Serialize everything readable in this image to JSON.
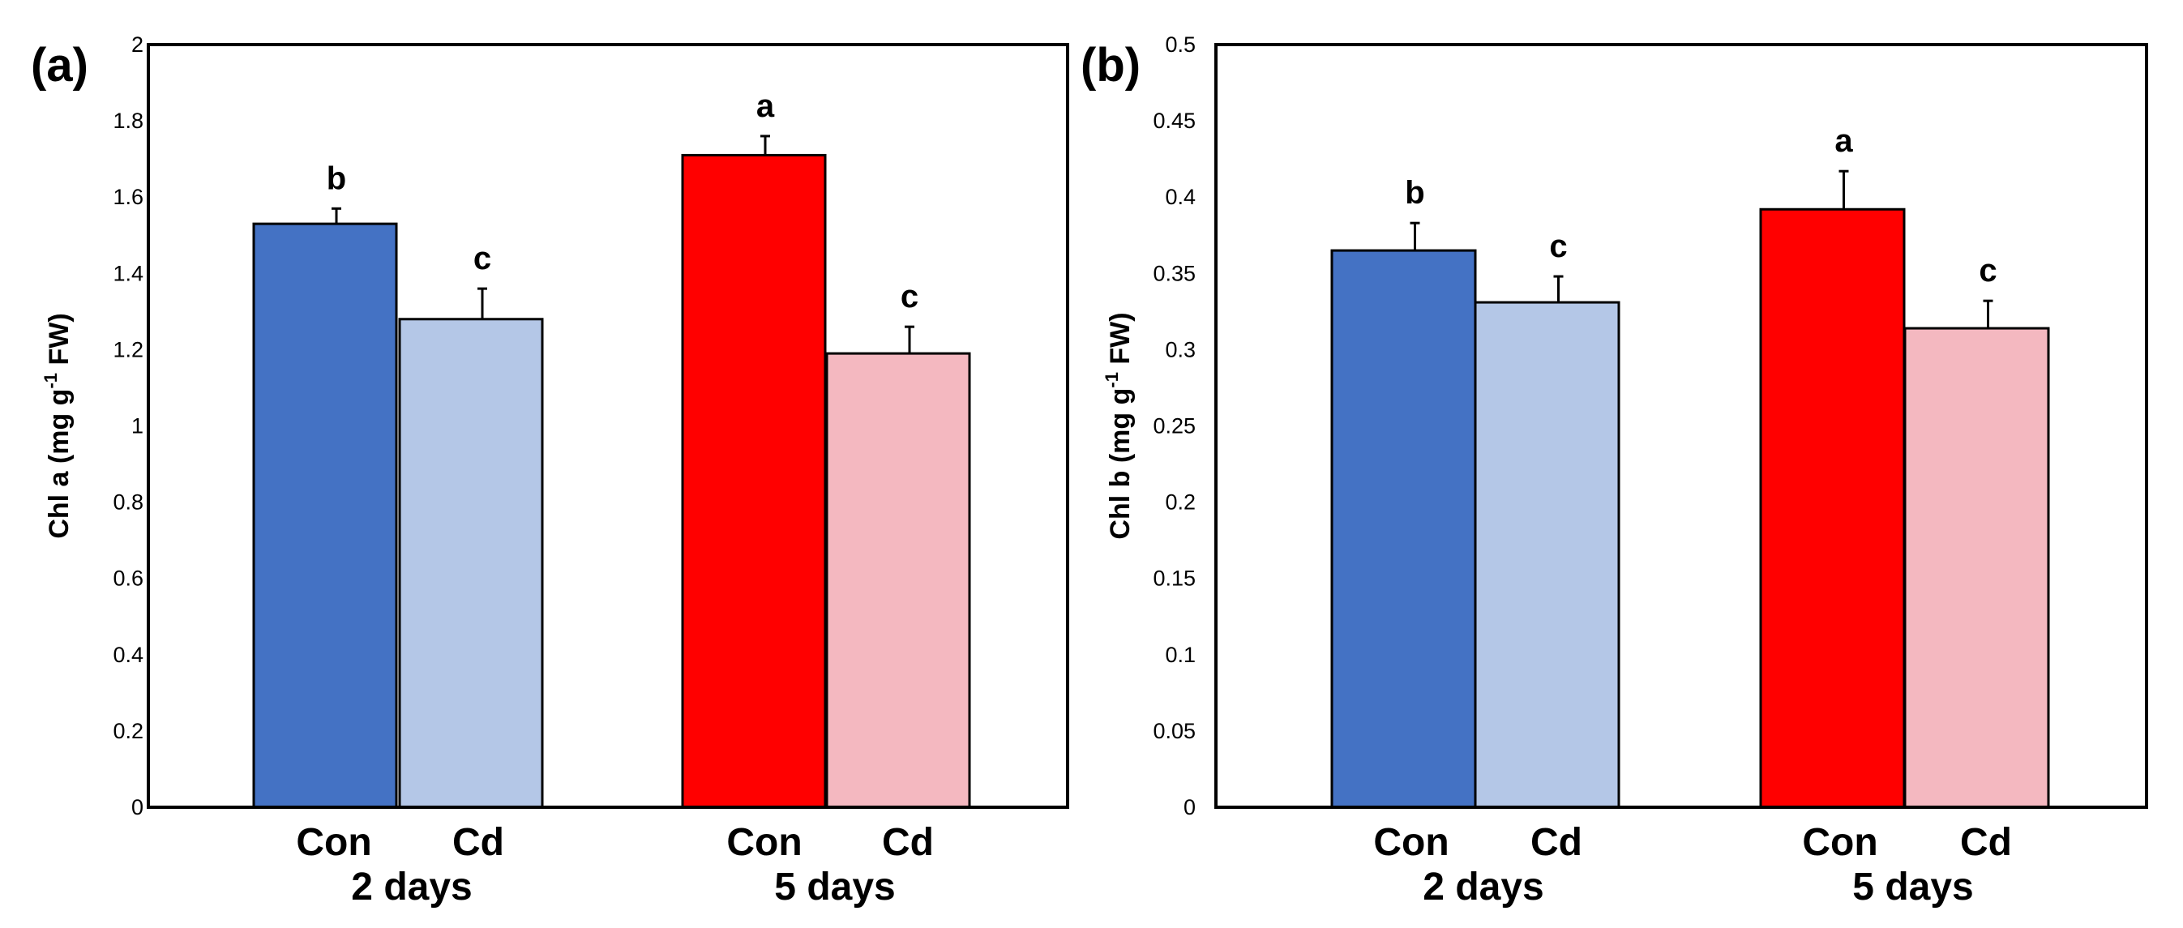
{
  "chart_data": [
    {
      "type": "bar",
      "panel_label": "(a)",
      "ylabel_main": "Chl a (mg g",
      "ylabel_sup": "-1",
      "ylabel_end": " FW)",
      "ylim": [
        0,
        2
      ],
      "yticks": [
        "0",
        "0.2",
        "0.4",
        "0.6",
        "0.8",
        "1",
        "1.2",
        "1.4",
        "1.6",
        "1.8",
        "2"
      ],
      "ytick_values": [
        0,
        0.2,
        0.4,
        0.6,
        0.8,
        1.0,
        1.2,
        1.4,
        1.6,
        1.8,
        2.0
      ],
      "groups": [
        "2 days",
        "5 days"
      ],
      "bars": [
        {
          "group": "2 days",
          "label": "Con",
          "value": 1.53,
          "error": 0.04,
          "sig": "b",
          "color": "#4472C4"
        },
        {
          "group": "2 days",
          "label": "Cd",
          "value": 1.28,
          "error": 0.08,
          "sig": "c",
          "color": "#B4C7E7"
        },
        {
          "group": "5 days",
          "label": "Con",
          "value": 1.71,
          "error": 0.05,
          "sig": "a",
          "color": "#FF0000"
        },
        {
          "group": "5 days",
          "label": "Cd",
          "value": 1.19,
          "error": 0.07,
          "sig": "c",
          "color": "#F4B8C0"
        }
      ]
    },
    {
      "type": "bar",
      "panel_label": "(b)",
      "ylabel_main": "Chl b (mg g",
      "ylabel_sup": "-1",
      "ylabel_end": " FW)",
      "ylim": [
        0,
        0.5
      ],
      "yticks": [
        "0",
        "0.05",
        "0.1",
        "0.15",
        "0.2",
        "0.25",
        "0.3",
        "0.35",
        "0.4",
        "0.45",
        "0.5"
      ],
      "ytick_values": [
        0,
        0.05,
        0.1,
        0.15,
        0.2,
        0.25,
        0.3,
        0.35,
        0.4,
        0.45,
        0.5
      ],
      "groups": [
        "2 days",
        "5 days"
      ],
      "bars": [
        {
          "group": "2 days",
          "label": "Con",
          "value": 0.365,
          "error": 0.018,
          "sig": "b",
          "color": "#4472C4"
        },
        {
          "group": "2 days",
          "label": "Cd",
          "value": 0.331,
          "error": 0.017,
          "sig": "c",
          "color": "#B4C7E7"
        },
        {
          "group": "5 days",
          "label": "Con",
          "value": 0.392,
          "error": 0.025,
          "sig": "a",
          "color": "#FF0000"
        },
        {
          "group": "5 days",
          "label": "Cd",
          "value": 0.314,
          "error": 0.018,
          "sig": "c",
          "color": "#F4B8C0"
        }
      ]
    }
  ]
}
